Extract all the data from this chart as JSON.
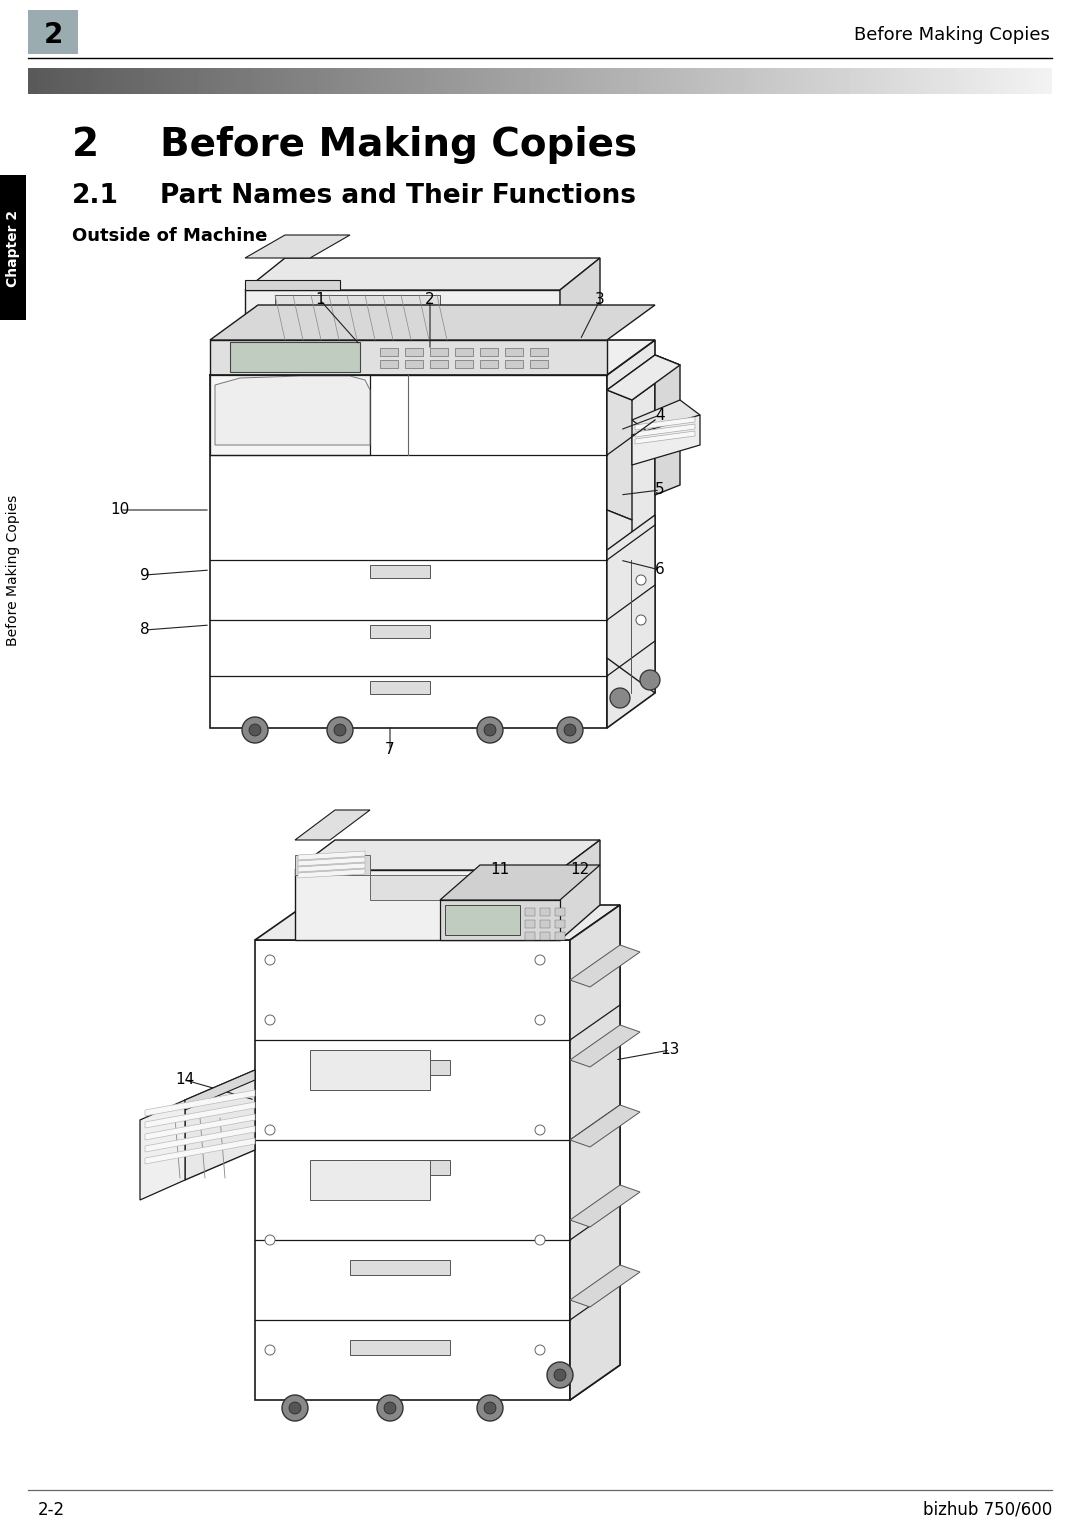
{
  "page_bg": "#ffffff",
  "header_bg_box_color": "#9aacb0",
  "header_number": "2",
  "header_right_text": "Before Making Copies",
  "chapter_tab_text": "Chapter 2",
  "sidebar_text": "Before Making Copies",
  "chapter_number": "2",
  "chapter_title": "Before Making Copies",
  "section_number": "2.1",
  "section_title": "Part Names and Their Functions",
  "subsection_title": "Outside of Machine",
  "footer_left": "2-2",
  "footer_right": "bizhub 750/600",
  "lc": "#1a1a1a",
  "lw": 1.0,
  "top_labels": [
    [
      "1",
      320,
      300,
      360,
      345
    ],
    [
      "2",
      430,
      300,
      430,
      350
    ],
    [
      "3",
      600,
      300,
      580,
      340
    ],
    [
      "4",
      660,
      415,
      620,
      430
    ],
    [
      "5",
      660,
      490,
      620,
      495
    ],
    [
      "6",
      660,
      570,
      620,
      560
    ],
    [
      "7",
      390,
      750,
      390,
      725
    ],
    [
      "8",
      145,
      630,
      210,
      625
    ],
    [
      "9",
      145,
      575,
      210,
      570
    ],
    [
      "10",
      120,
      510,
      210,
      510
    ]
  ],
  "bot_labels": [
    [
      "11",
      500,
      870,
      470,
      910
    ],
    [
      "12",
      580,
      870,
      540,
      900
    ],
    [
      "13",
      670,
      1050,
      615,
      1060
    ],
    [
      "14",
      185,
      1080,
      255,
      1100
    ]
  ]
}
